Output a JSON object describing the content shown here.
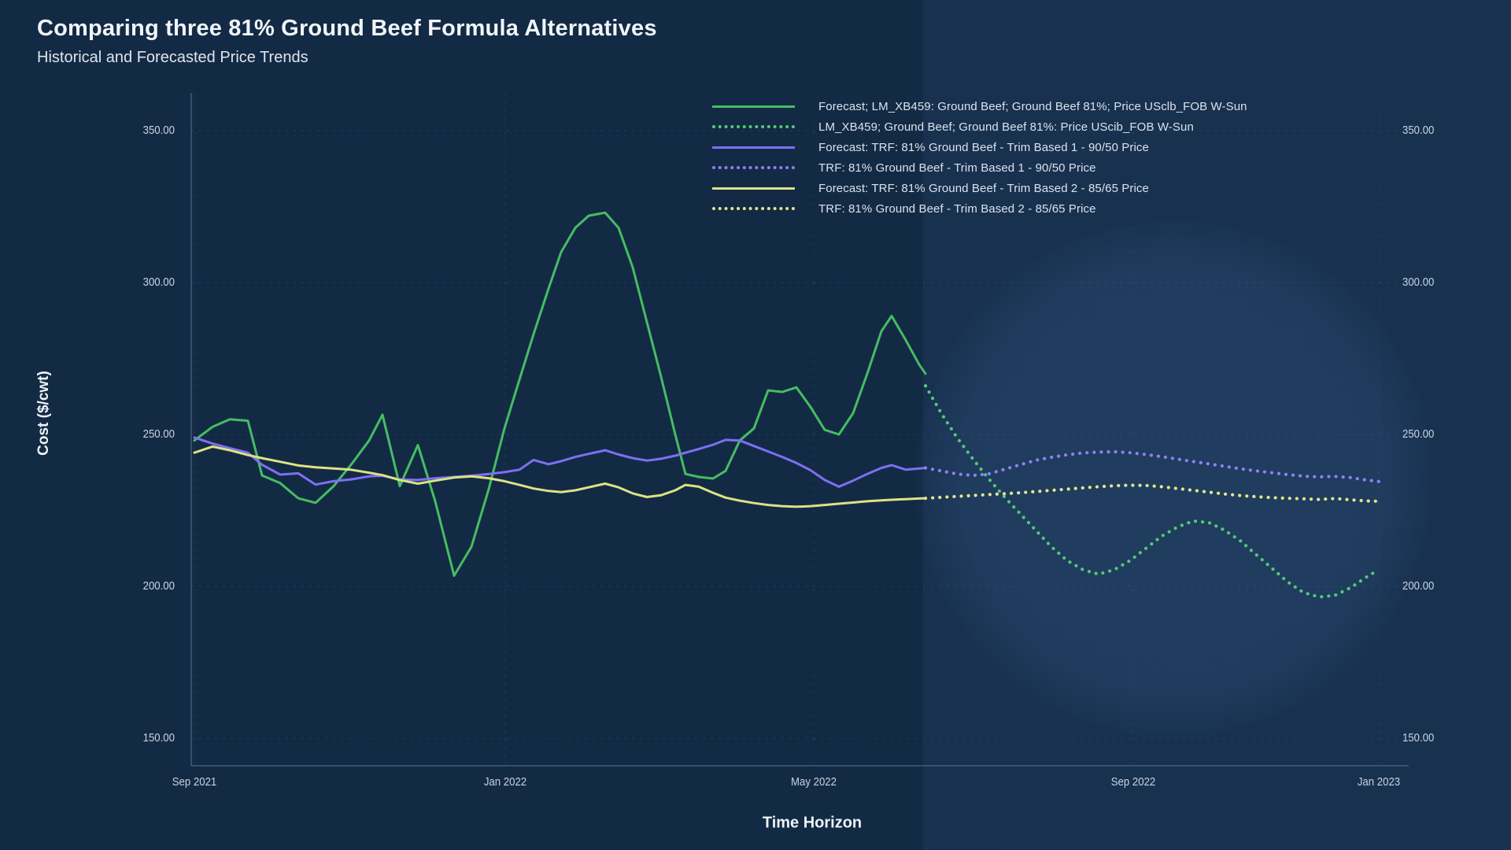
{
  "page": {
    "title": "Comparing three 81% Ground Beef Formula Alternatives",
    "subtitle": "Historical and Forecasted Price Trends"
  },
  "chart_data": {
    "type": "line",
    "title": "Comparing three 81% Ground Beef Formula Alternatives",
    "subtitle": "Historical and Forecasted Price Trends",
    "xlabel": "Time Horizon",
    "ylabel": "Cost ($/cwt)",
    "x_tick_labels": [
      "Sep 2021",
      "Jan 2022",
      "May 2022",
      "Sep 2022",
      "Jan 2023"
    ],
    "y_ticks": [
      350,
      300,
      250,
      200,
      150
    ],
    "y_tick_labels": [
      "350.00",
      "300.00",
      "250.00",
      "200.00",
      "150.00"
    ],
    "ylim": [
      140,
      360
    ],
    "grid": "faint dashed gridlines on both axes",
    "legend_position": "top-right",
    "highlight_region": {
      "from": "mid Jun 2022",
      "to": "Jan 2023",
      "note": "forecast horizon shown lighter with circular glow; lines become dotted"
    },
    "series": [
      {
        "name": "Forecast; LM_XB459: Ground Beef; Ground Beef 81%; Price USclb_FOB W-Sun",
        "slug": "forecast-lm-xb459",
        "color": "#45bd62",
        "style": "solid",
        "points": [
          [
            247,
            248
          ],
          [
            270,
            252.5
          ],
          [
            292,
            255
          ],
          [
            315,
            254.5
          ],
          [
            333,
            236.5
          ],
          [
            356,
            234
          ],
          [
            379,
            229
          ],
          [
            401,
            227.5
          ],
          [
            424,
            233
          ],
          [
            446,
            240
          ],
          [
            469,
            248
          ],
          [
            486,
            256.5
          ],
          [
            508,
            233
          ],
          [
            531,
            246.5
          ],
          [
            553,
            228
          ],
          [
            577,
            203.5
          ],
          [
            599,
            213
          ],
          [
            621,
            232
          ],
          [
            641,
            252
          ],
          [
            660,
            268
          ],
          [
            678,
            283
          ],
          [
            697,
            298
          ],
          [
            713,
            310
          ],
          [
            731,
            318
          ],
          [
            748,
            322
          ],
          [
            769,
            323
          ],
          [
            786,
            318
          ],
          [
            804,
            305
          ],
          [
            822,
            287
          ],
          [
            840,
            269
          ],
          [
            858,
            250
          ],
          [
            871,
            237
          ],
          [
            888,
            236
          ],
          [
            906,
            235.5
          ],
          [
            922,
            238
          ],
          [
            940,
            248
          ],
          [
            958,
            252
          ],
          [
            976,
            264.5
          ],
          [
            994,
            264
          ],
          [
            1012,
            265.5
          ],
          [
            1030,
            259
          ],
          [
            1048,
            251.5
          ],
          [
            1066,
            250
          ],
          [
            1084,
            257
          ],
          [
            1102,
            270
          ],
          [
            1120,
            284
          ],
          [
            1133,
            289
          ],
          [
            1151,
            281
          ],
          [
            1168,
            273
          ],
          [
            1176,
            270
          ]
        ]
      },
      {
        "name": "LM_XB459; Ground Beef; Ground Beef 81%: Price UScib_FOB W-Sun",
        "slug": "lm-xb459-actual",
        "color": "#55c878",
        "style": "dotted",
        "points": [
          [
            1176,
            266
          ],
          [
            1196,
            257
          ],
          [
            1216,
            249
          ],
          [
            1236,
            242
          ],
          [
            1256,
            235.5
          ],
          [
            1276,
            229.5
          ],
          [
            1296,
            224
          ],
          [
            1316,
            218.5
          ],
          [
            1336,
            213
          ],
          [
            1356,
            208.5
          ],
          [
            1376,
            205.5
          ],
          [
            1396,
            204
          ],
          [
            1416,
            205.5
          ],
          [
            1436,
            208.5
          ],
          [
            1456,
            212.5
          ],
          [
            1476,
            216.5
          ],
          [
            1496,
            219.5
          ],
          [
            1516,
            221.5
          ],
          [
            1536,
            221
          ],
          [
            1556,
            218.5
          ],
          [
            1576,
            215
          ],
          [
            1596,
            210.5
          ],
          [
            1616,
            206
          ],
          [
            1636,
            201.5
          ],
          [
            1656,
            198
          ],
          [
            1676,
            196.5
          ],
          [
            1696,
            197
          ],
          [
            1716,
            199.5
          ],
          [
            1736,
            203
          ],
          [
            1752,
            205.5
          ]
        ]
      },
      {
        "name": "Forecast: TRF: 81% Ground Beef - Trim Based 1 - 90/50 Price",
        "slug": "forecast-trf-trim-based-1",
        "color": "#7e6ff2",
        "style": "solid",
        "points": [
          [
            247,
            249
          ],
          [
            270,
            247
          ],
          [
            292,
            245.5
          ],
          [
            315,
            244
          ],
          [
            333,
            240
          ],
          [
            356,
            236.8
          ],
          [
            379,
            237.2
          ],
          [
            401,
            233.5
          ],
          [
            424,
            234.6
          ],
          [
            446,
            235.2
          ],
          [
            469,
            236.2
          ],
          [
            486,
            236.4
          ],
          [
            508,
            235.2
          ],
          [
            531,
            235
          ],
          [
            553,
            235.6
          ],
          [
            577,
            236
          ],
          [
            599,
            236.4
          ],
          [
            621,
            237
          ],
          [
            641,
            237.6
          ],
          [
            660,
            238.4
          ],
          [
            678,
            241.6
          ],
          [
            697,
            240.2
          ],
          [
            713,
            241.2
          ],
          [
            731,
            242.6
          ],
          [
            748,
            243.6
          ],
          [
            769,
            244.8
          ],
          [
            786,
            243.4
          ],
          [
            804,
            242.2
          ],
          [
            822,
            241.4
          ],
          [
            840,
            242
          ],
          [
            858,
            243
          ],
          [
            871,
            244
          ],
          [
            888,
            245.2
          ],
          [
            906,
            246.6
          ],
          [
            922,
            248.2
          ],
          [
            940,
            248
          ],
          [
            958,
            246.2
          ],
          [
            976,
            244.4
          ],
          [
            994,
            242.6
          ],
          [
            1012,
            240.6
          ],
          [
            1030,
            238.2
          ],
          [
            1048,
            235
          ],
          [
            1066,
            232.8
          ],
          [
            1084,
            234.8
          ],
          [
            1102,
            237
          ],
          [
            1120,
            239
          ],
          [
            1133,
            239.9
          ],
          [
            1151,
            238.4
          ],
          [
            1168,
            238.8
          ],
          [
            1176,
            239
          ]
        ]
      },
      {
        "name": "TRF: 81% Ground Beef - Trim Based 1 - 90/50 Price",
        "slug": "trf-trim-based-1",
        "color": "#8f80f4",
        "style": "dotted",
        "points": [
          [
            1176,
            239
          ],
          [
            1196,
            238
          ],
          [
            1216,
            237
          ],
          [
            1236,
            236.5
          ],
          [
            1256,
            237
          ],
          [
            1276,
            238.5
          ],
          [
            1296,
            240
          ],
          [
            1316,
            241.5
          ],
          [
            1336,
            242.5
          ],
          [
            1356,
            243.3
          ],
          [
            1376,
            243.9
          ],
          [
            1396,
            244.2
          ],
          [
            1416,
            244.3
          ],
          [
            1436,
            244
          ],
          [
            1456,
            243.4
          ],
          [
            1476,
            242.7
          ],
          [
            1496,
            241.9
          ],
          [
            1516,
            241.1
          ],
          [
            1536,
            240.3
          ],
          [
            1556,
            239.5
          ],
          [
            1576,
            238.7
          ],
          [
            1596,
            238
          ],
          [
            1616,
            237.4
          ],
          [
            1636,
            236.8
          ],
          [
            1656,
            236.3
          ],
          [
            1676,
            236
          ],
          [
            1696,
            236.2
          ],
          [
            1716,
            235.8
          ],
          [
            1736,
            235
          ],
          [
            1752,
            234.5
          ]
        ]
      },
      {
        "name": "Forecast: TRF: 81% Ground Beef - Trim Based 2 - 85/65 Price",
        "slug": "forecast-trf-trim-based-2",
        "color": "#dde282",
        "style": "solid",
        "points": [
          [
            247,
            244
          ],
          [
            270,
            246
          ],
          [
            292,
            244.8
          ],
          [
            315,
            243.2
          ],
          [
            333,
            242.2
          ],
          [
            356,
            241
          ],
          [
            379,
            239.8
          ],
          [
            401,
            239.2
          ],
          [
            424,
            238.8
          ],
          [
            446,
            238.4
          ],
          [
            469,
            237.4
          ],
          [
            486,
            236.6
          ],
          [
            508,
            235
          ],
          [
            531,
            233.8
          ],
          [
            553,
            234.8
          ],
          [
            577,
            235.8
          ],
          [
            599,
            236.2
          ],
          [
            621,
            235.6
          ],
          [
            641,
            234.6
          ],
          [
            660,
            233.4
          ],
          [
            678,
            232.2
          ],
          [
            697,
            231.4
          ],
          [
            713,
            231
          ],
          [
            731,
            231.6
          ],
          [
            748,
            232.6
          ],
          [
            769,
            233.8
          ],
          [
            786,
            232.6
          ],
          [
            804,
            230.6
          ],
          [
            822,
            229.4
          ],
          [
            840,
            230
          ],
          [
            858,
            231.6
          ],
          [
            871,
            233.4
          ],
          [
            888,
            232.8
          ],
          [
            906,
            230.8
          ],
          [
            922,
            229.2
          ],
          [
            940,
            228.2
          ],
          [
            958,
            227.4
          ],
          [
            976,
            226.8
          ],
          [
            994,
            226.4
          ],
          [
            1012,
            226.2
          ],
          [
            1030,
            226.4
          ],
          [
            1048,
            226.8
          ],
          [
            1066,
            227.2
          ],
          [
            1084,
            227.6
          ],
          [
            1102,
            228
          ],
          [
            1120,
            228.3
          ],
          [
            1133,
            228.5
          ],
          [
            1151,
            228.7
          ],
          [
            1168,
            228.9
          ],
          [
            1176,
            229
          ]
        ]
      },
      {
        "name": "TRF: 81% Ground Beef - Trim Based 2 - 85/65 Price",
        "slug": "trf-trim-based-2",
        "color": "#e2e68c",
        "style": "dotted",
        "points": [
          [
            1176,
            229
          ],
          [
            1196,
            229.3
          ],
          [
            1216,
            229.6
          ],
          [
            1236,
            229.9
          ],
          [
            1256,
            230.2
          ],
          [
            1276,
            230.5
          ],
          [
            1296,
            230.8
          ],
          [
            1316,
            231.2
          ],
          [
            1336,
            231.6
          ],
          [
            1356,
            232
          ],
          [
            1376,
            232.4
          ],
          [
            1396,
            232.8
          ],
          [
            1416,
            233.1
          ],
          [
            1436,
            233.3
          ],
          [
            1456,
            233.2
          ],
          [
            1476,
            232.8
          ],
          [
            1496,
            232.2
          ],
          [
            1516,
            231.6
          ],
          [
            1536,
            231
          ],
          [
            1556,
            230.4
          ],
          [
            1576,
            229.9
          ],
          [
            1596,
            229.5
          ],
          [
            1616,
            229.2
          ],
          [
            1636,
            229
          ],
          [
            1656,
            228.8
          ],
          [
            1676,
            228.6
          ],
          [
            1696,
            228.9
          ],
          [
            1716,
            228.5
          ],
          [
            1736,
            228.1
          ],
          [
            1752,
            228
          ]
        ]
      }
    ]
  },
  "colors": {
    "background": "#132a45",
    "highlight_band": "rgba(90,140,210,0.08)",
    "green": "#45bd62",
    "purple": "#7e6ff2",
    "yellow": "#dde282",
    "text": "#f1f5f9",
    "tick_text": "#c7d2e0"
  }
}
